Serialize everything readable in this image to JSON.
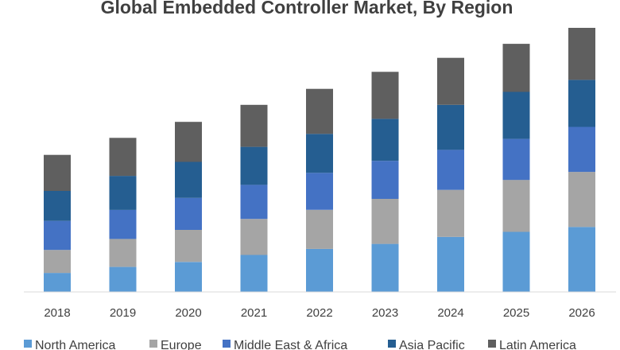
{
  "chart_data": {
    "type": "bar",
    "stacked": true,
    "title": "Global Embedded Controller Market, By Region",
    "xlabel": "",
    "ylabel": "",
    "grid": false,
    "legend_position": "bottom",
    "categories": [
      "2018",
      "2019",
      "2020",
      "2021",
      "2022",
      "2023",
      "2024",
      "2025",
      "2026"
    ],
    "ylim": [
      0,
      260
    ],
    "series": [
      {
        "name": "North America",
        "color": "#5b9bd5",
        "values": [
          19,
          25,
          30,
          37,
          43,
          48,
          55,
          60,
          65
        ]
      },
      {
        "name": "Europe",
        "color": "#a5a5a5",
        "values": [
          23,
          28,
          32,
          36,
          39,
          45,
          47,
          52,
          55
        ]
      },
      {
        "name": "Middle East & Africa",
        "color": "#4472c4",
        "values": [
          29,
          29,
          32,
          34,
          37,
          38,
          40,
          41,
          45
        ]
      },
      {
        "name": "Asia Pacific",
        "color": "#255e91",
        "values": [
          30,
          34,
          36,
          38,
          39,
          42,
          45,
          47,
          47
        ]
      },
      {
        "name": "Latin America",
        "color": "#5f5f5f",
        "values": [
          36,
          38,
          40,
          42,
          45,
          47,
          47,
          48,
          52
        ]
      }
    ]
  }
}
